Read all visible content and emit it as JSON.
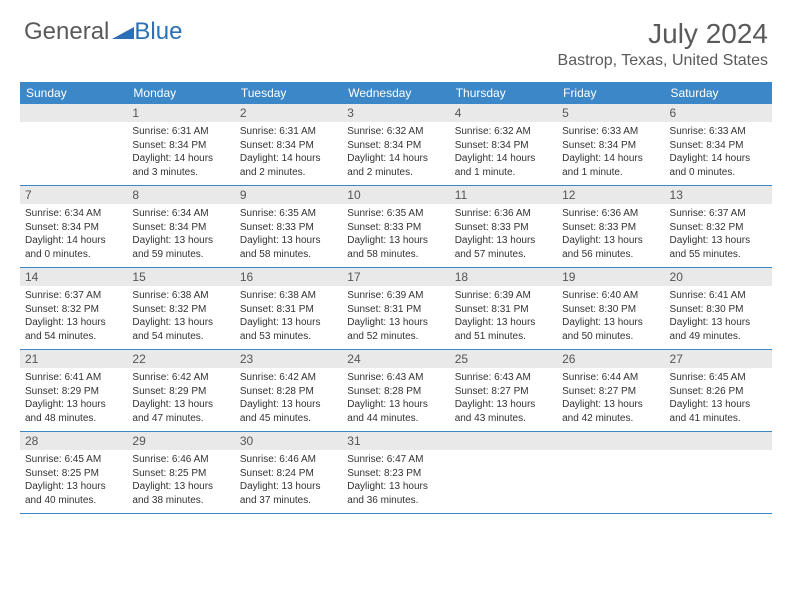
{
  "logo": {
    "text_general": "General",
    "text_blue": "Blue",
    "shape_color": "#2d6fb5"
  },
  "title": {
    "month": "July 2024",
    "location": "Bastrop, Texas, United States"
  },
  "colors": {
    "header_bg": "#3b87c8",
    "header_text": "#ffffff",
    "daynum_bg": "#e9e9e9",
    "daynum_text": "#555555",
    "body_text": "#333333",
    "title_text": "#5a5a5a",
    "row_divider": "#3b87c8"
  },
  "weekdays": [
    "Sunday",
    "Monday",
    "Tuesday",
    "Wednesday",
    "Thursday",
    "Friday",
    "Saturday"
  ],
  "weeks": [
    [
      {
        "num": "",
        "sunrise": "",
        "sunset": "",
        "daylight": ""
      },
      {
        "num": "1",
        "sunrise": "Sunrise: 6:31 AM",
        "sunset": "Sunset: 8:34 PM",
        "daylight": "Daylight: 14 hours and 3 minutes."
      },
      {
        "num": "2",
        "sunrise": "Sunrise: 6:31 AM",
        "sunset": "Sunset: 8:34 PM",
        "daylight": "Daylight: 14 hours and 2 minutes."
      },
      {
        "num": "3",
        "sunrise": "Sunrise: 6:32 AM",
        "sunset": "Sunset: 8:34 PM",
        "daylight": "Daylight: 14 hours and 2 minutes."
      },
      {
        "num": "4",
        "sunrise": "Sunrise: 6:32 AM",
        "sunset": "Sunset: 8:34 PM",
        "daylight": "Daylight: 14 hours and 1 minute."
      },
      {
        "num": "5",
        "sunrise": "Sunrise: 6:33 AM",
        "sunset": "Sunset: 8:34 PM",
        "daylight": "Daylight: 14 hours and 1 minute."
      },
      {
        "num": "6",
        "sunrise": "Sunrise: 6:33 AM",
        "sunset": "Sunset: 8:34 PM",
        "daylight": "Daylight: 14 hours and 0 minutes."
      }
    ],
    [
      {
        "num": "7",
        "sunrise": "Sunrise: 6:34 AM",
        "sunset": "Sunset: 8:34 PM",
        "daylight": "Daylight: 14 hours and 0 minutes."
      },
      {
        "num": "8",
        "sunrise": "Sunrise: 6:34 AM",
        "sunset": "Sunset: 8:34 PM",
        "daylight": "Daylight: 13 hours and 59 minutes."
      },
      {
        "num": "9",
        "sunrise": "Sunrise: 6:35 AM",
        "sunset": "Sunset: 8:33 PM",
        "daylight": "Daylight: 13 hours and 58 minutes."
      },
      {
        "num": "10",
        "sunrise": "Sunrise: 6:35 AM",
        "sunset": "Sunset: 8:33 PM",
        "daylight": "Daylight: 13 hours and 58 minutes."
      },
      {
        "num": "11",
        "sunrise": "Sunrise: 6:36 AM",
        "sunset": "Sunset: 8:33 PM",
        "daylight": "Daylight: 13 hours and 57 minutes."
      },
      {
        "num": "12",
        "sunrise": "Sunrise: 6:36 AM",
        "sunset": "Sunset: 8:33 PM",
        "daylight": "Daylight: 13 hours and 56 minutes."
      },
      {
        "num": "13",
        "sunrise": "Sunrise: 6:37 AM",
        "sunset": "Sunset: 8:32 PM",
        "daylight": "Daylight: 13 hours and 55 minutes."
      }
    ],
    [
      {
        "num": "14",
        "sunrise": "Sunrise: 6:37 AM",
        "sunset": "Sunset: 8:32 PM",
        "daylight": "Daylight: 13 hours and 54 minutes."
      },
      {
        "num": "15",
        "sunrise": "Sunrise: 6:38 AM",
        "sunset": "Sunset: 8:32 PM",
        "daylight": "Daylight: 13 hours and 54 minutes."
      },
      {
        "num": "16",
        "sunrise": "Sunrise: 6:38 AM",
        "sunset": "Sunset: 8:31 PM",
        "daylight": "Daylight: 13 hours and 53 minutes."
      },
      {
        "num": "17",
        "sunrise": "Sunrise: 6:39 AM",
        "sunset": "Sunset: 8:31 PM",
        "daylight": "Daylight: 13 hours and 52 minutes."
      },
      {
        "num": "18",
        "sunrise": "Sunrise: 6:39 AM",
        "sunset": "Sunset: 8:31 PM",
        "daylight": "Daylight: 13 hours and 51 minutes."
      },
      {
        "num": "19",
        "sunrise": "Sunrise: 6:40 AM",
        "sunset": "Sunset: 8:30 PM",
        "daylight": "Daylight: 13 hours and 50 minutes."
      },
      {
        "num": "20",
        "sunrise": "Sunrise: 6:41 AM",
        "sunset": "Sunset: 8:30 PM",
        "daylight": "Daylight: 13 hours and 49 minutes."
      }
    ],
    [
      {
        "num": "21",
        "sunrise": "Sunrise: 6:41 AM",
        "sunset": "Sunset: 8:29 PM",
        "daylight": "Daylight: 13 hours and 48 minutes."
      },
      {
        "num": "22",
        "sunrise": "Sunrise: 6:42 AM",
        "sunset": "Sunset: 8:29 PM",
        "daylight": "Daylight: 13 hours and 47 minutes."
      },
      {
        "num": "23",
        "sunrise": "Sunrise: 6:42 AM",
        "sunset": "Sunset: 8:28 PM",
        "daylight": "Daylight: 13 hours and 45 minutes."
      },
      {
        "num": "24",
        "sunrise": "Sunrise: 6:43 AM",
        "sunset": "Sunset: 8:28 PM",
        "daylight": "Daylight: 13 hours and 44 minutes."
      },
      {
        "num": "25",
        "sunrise": "Sunrise: 6:43 AM",
        "sunset": "Sunset: 8:27 PM",
        "daylight": "Daylight: 13 hours and 43 minutes."
      },
      {
        "num": "26",
        "sunrise": "Sunrise: 6:44 AM",
        "sunset": "Sunset: 8:27 PM",
        "daylight": "Daylight: 13 hours and 42 minutes."
      },
      {
        "num": "27",
        "sunrise": "Sunrise: 6:45 AM",
        "sunset": "Sunset: 8:26 PM",
        "daylight": "Daylight: 13 hours and 41 minutes."
      }
    ],
    [
      {
        "num": "28",
        "sunrise": "Sunrise: 6:45 AM",
        "sunset": "Sunset: 8:25 PM",
        "daylight": "Daylight: 13 hours and 40 minutes."
      },
      {
        "num": "29",
        "sunrise": "Sunrise: 6:46 AM",
        "sunset": "Sunset: 8:25 PM",
        "daylight": "Daylight: 13 hours and 38 minutes."
      },
      {
        "num": "30",
        "sunrise": "Sunrise: 6:46 AM",
        "sunset": "Sunset: 8:24 PM",
        "daylight": "Daylight: 13 hours and 37 minutes."
      },
      {
        "num": "31",
        "sunrise": "Sunrise: 6:47 AM",
        "sunset": "Sunset: 8:23 PM",
        "daylight": "Daylight: 13 hours and 36 minutes."
      },
      {
        "num": "",
        "sunrise": "",
        "sunset": "",
        "daylight": ""
      },
      {
        "num": "",
        "sunrise": "",
        "sunset": "",
        "daylight": ""
      },
      {
        "num": "",
        "sunrise": "",
        "sunset": "",
        "daylight": ""
      }
    ]
  ]
}
